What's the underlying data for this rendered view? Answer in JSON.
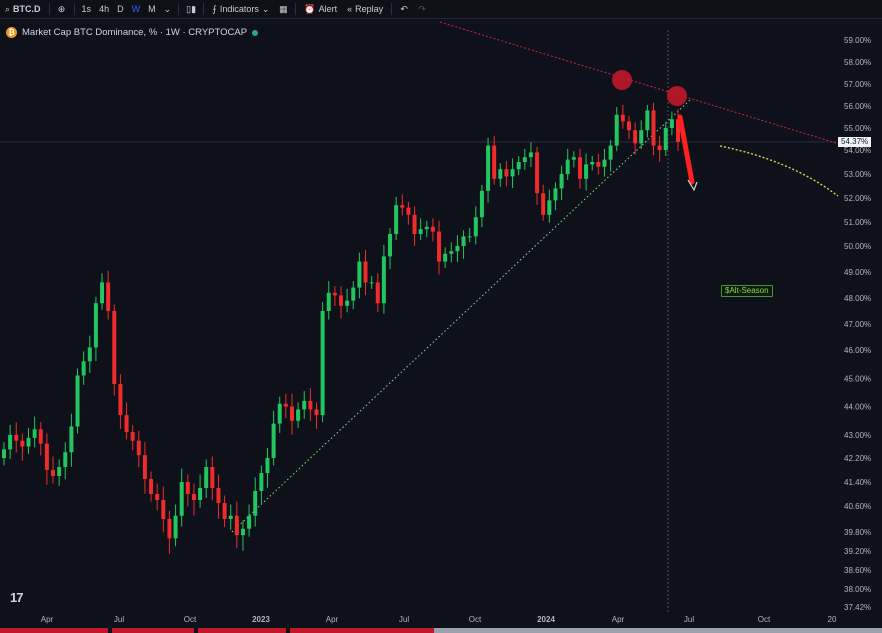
{
  "toolbar": {
    "symbol": "BTC.D",
    "intervals": [
      "1s",
      "4h",
      "D",
      "W",
      "M"
    ],
    "active_interval": "W",
    "indicators_label": "Indicators",
    "alert_label": "Alert",
    "replay_label": "Replay"
  },
  "legend": {
    "title": "Market Cap BTC Dominance, % · 1W · CRYPTOCAP",
    "coin_glyph": "₿"
  },
  "annotation": {
    "alt_season": "$Alt-Season"
  },
  "price_badge": "54.37%",
  "colors": {
    "up": "#22c55e",
    "down": "#ef2b2b",
    "background": "#0f111a",
    "resistance": "#d0243a",
    "support": "#7fe08a",
    "projection": "#e8e34a"
  },
  "chart_data": {
    "type": "candlestick",
    "title": "Market Cap BTC Dominance, %",
    "y_axis_labels": [
      "59.00%",
      "58.00%",
      "57.00%",
      "56.00%",
      "55.00%",
      "54.00%",
      "53.00%",
      "52.00%",
      "51.00%",
      "50.00%",
      "49.00%",
      "48.00%",
      "47.00%",
      "46.00%",
      "45.00%",
      "44.00%",
      "43.00%",
      "42.20%",
      "41.40%",
      "40.60%",
      "39.80%",
      "39.20%",
      "38.60%",
      "38.00%",
      "37.42%"
    ],
    "x_axis_labels": [
      "Apr",
      "Jul",
      "Oct",
      "2023",
      "Apr",
      "Jul",
      "Oct",
      "2024",
      "Apr",
      "Jul",
      "Oct",
      "20"
    ],
    "last_value": 54.37,
    "peaks_marked": [
      57.0,
      56.2
    ],
    "series": [
      {
        "name": "BTC.D weekly candles",
        "close_values": [
          42.5,
          43.0,
          42.8,
          42.6,
          42.9,
          43.2,
          42.7,
          41.8,
          41.6,
          41.9,
          42.4,
          43.3,
          45.1,
          45.6,
          46.1,
          47.8,
          48.6,
          47.5,
          44.8,
          43.7,
          43.1,
          42.8,
          42.3,
          41.5,
          41.0,
          40.8,
          40.2,
          39.6,
          40.3,
          41.4,
          41.0,
          40.8,
          41.2,
          41.9,
          41.2,
          40.7,
          40.2,
          40.3,
          39.7,
          39.9,
          40.3,
          41.1,
          41.7,
          42.2,
          43.4,
          44.1,
          44.0,
          43.5,
          43.9,
          44.2,
          43.9,
          43.7,
          47.5,
          48.2,
          48.1,
          47.7,
          47.9,
          48.4,
          49.4,
          48.6,
          48.6,
          47.8,
          49.6,
          50.5,
          51.7,
          51.6,
          51.3,
          50.5,
          50.7,
          50.8,
          50.6,
          49.4,
          49.7,
          49.8,
          50.0,
          50.4,
          50.4,
          51.2,
          52.3,
          54.2,
          52.8,
          53.2,
          52.9,
          53.2,
          53.5,
          53.7,
          53.9,
          52.2,
          51.3,
          51.9,
          52.4,
          53.0,
          53.6,
          53.7,
          52.8,
          53.4,
          53.5,
          53.3,
          53.6,
          54.2,
          55.6,
          55.3,
          54.9,
          54.3,
          54.9,
          55.8,
          54.2,
          54.0,
          55.0,
          55.4,
          54.37
        ]
      }
    ],
    "lines": {
      "resistance": "descending from top-left to right edge near 54.3",
      "support": "rising dotted trendline from 39.8 to 55.8",
      "projection": "red arrow drop to ~52.8, yellow curve toward 52.0"
    }
  }
}
